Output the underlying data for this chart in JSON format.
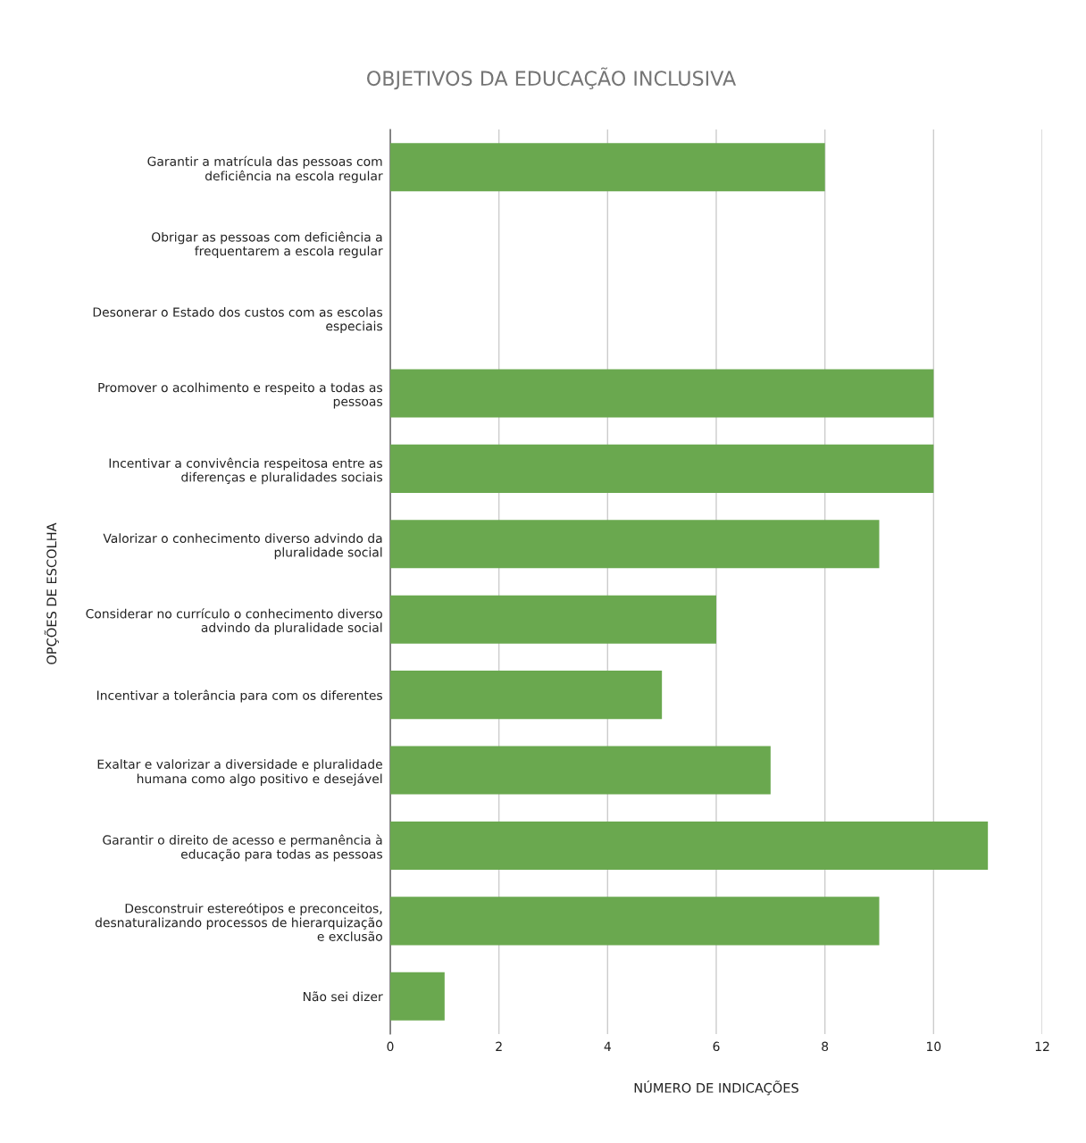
{
  "chart_data": {
    "type": "bar",
    "orientation": "horizontal",
    "title": "OBJETIVOS DA EDUCAÇÃO INCLUSIVA",
    "xlabel": "NÚMERO DE INDICAÇÕES",
    "ylabel": "OPÇÕES DE ESCOLHA",
    "categories": [
      "Garantir a matrícula das pessoas com\ndeficiência na escola regular",
      "Obrigar as pessoas com deficiência a\nfrequentarem a escola regular",
      "Desonerar o Estado dos custos com as escolas\nespeciais",
      "Promover o acolhimento e respeito a todas as\npessoas",
      "Incentivar a convivência respeitosa entre as\ndiferenças e pluralidades sociais",
      "Valorizar o conhecimento diverso advindo da\npluralidade social",
      "Considerar no currículo o conhecimento diverso\nadvindo da pluralidade social",
      "Incentivar a tolerância para com os diferentes",
      "Exaltar e valorizar a diversidade e pluralidade\nhumana como algo positivo e desejável",
      "Garantir o direito de acesso e permanência à\neducação para todas as pessoas",
      "Desconstruir estereótipos e preconceitos,\ndesnaturalizando processos de hierarquização\ne exclusão",
      "Não sei dizer"
    ],
    "values": [
      8,
      0,
      0,
      10,
      10,
      9,
      6,
      5,
      7,
      11,
      9,
      1
    ],
    "color": "#6aa84f",
    "xlim": [
      0,
      12
    ],
    "xticks": [
      0,
      2,
      4,
      6,
      8,
      10,
      12
    ],
    "grid": "x",
    "legend": false
  }
}
